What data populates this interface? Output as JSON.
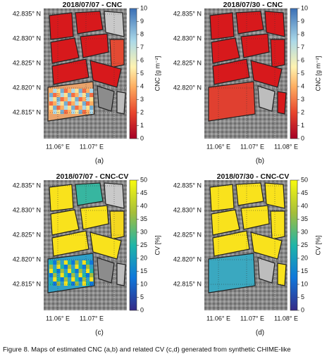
{
  "panels": [
    {
      "title": "2018/07/07 - CNC",
      "label": "(a)",
      "colorbar_label": "CNC [g m⁻²]",
      "colorbar_ticks": [
        "0",
        "1",
        "2",
        "3",
        "4",
        "5",
        "6",
        "7",
        "8",
        "9",
        "10"
      ],
      "lat_labels": [
        "42.835° N",
        "42.830° N",
        "42.825° N",
        "42.820° N",
        "42.815° N"
      ],
      "lon_labels": [
        "11.06° E",
        "11.07° E"
      ]
    },
    {
      "title": "2018/07/30 - CNC",
      "label": "(b)",
      "colorbar_label": "CNC [g m⁻²]",
      "colorbar_ticks": [
        "0",
        "1",
        "2",
        "3",
        "4",
        "5",
        "6",
        "7",
        "8",
        "9",
        "10"
      ],
      "lat_labels": [
        "42.835° N",
        "42.830° N",
        "42.825° N",
        "42.820° N"
      ],
      "lon_labels": [
        "11.06° E",
        "11.07° E",
        "11.08° E"
      ]
    },
    {
      "title": "2018/07/07 - CNC-CV",
      "label": "(c)",
      "colorbar_label": "CV [%]",
      "colorbar_ticks": [
        "0",
        "5",
        "10",
        "15",
        "20",
        "25",
        "30",
        "35",
        "40",
        "45",
        "50"
      ],
      "lat_labels": [
        "42.835° N",
        "42.830° N",
        "42.825° N",
        "42.820° N",
        "42.815° N"
      ],
      "lon_labels": [
        "11.06° E",
        "11.07° E"
      ]
    },
    {
      "title": "2018/07/30 - CNC-CV",
      "label": "(d)",
      "colorbar_label": "CV [%]",
      "colorbar_ticks": [
        "0",
        "5",
        "10",
        "15",
        "20",
        "25",
        "30",
        "35",
        "40",
        "45",
        "50"
      ],
      "lat_labels": [
        "42.835° N",
        "42.830° N",
        "42.825° N",
        "42.820° N",
        "42.815° N"
      ],
      "lon_labels": [
        "11.06° E",
        "11.07° E",
        "11.08° E"
      ]
    }
  ],
  "caption": "Figure 8. Maps of estimated CNC (a,b) and related CV (c,d) generated from synthetic CHIME-like"
}
